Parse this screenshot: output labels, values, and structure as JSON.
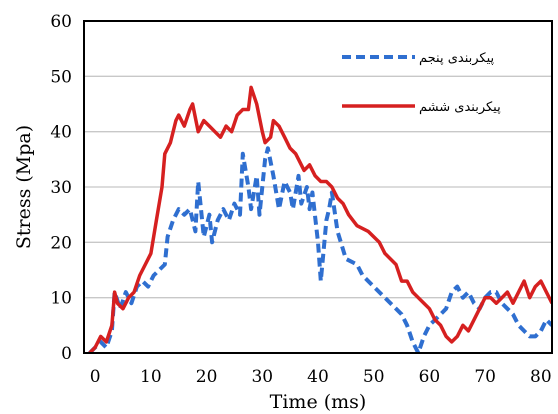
{
  "chart_data": {
    "type": "line",
    "xlabel": "Time (ms)",
    "ylabel": "Stress (Mpa)",
    "xlim": [
      -2,
      82
    ],
    "ylim": [
      0,
      60
    ],
    "xticks": [
      0,
      10,
      20,
      30,
      40,
      50,
      60,
      70,
      80
    ],
    "yticks": [
      0,
      10,
      20,
      30,
      40,
      50,
      60
    ],
    "grid": "horizontal",
    "legend_position": "top-right",
    "series": [
      {
        "name": "پیکربندی پنجم",
        "color": "#2f6fd0",
        "style": "dashed",
        "points": [
          [
            -1,
            0
          ],
          [
            0,
            1
          ],
          [
            1,
            2
          ],
          [
            2,
            1
          ],
          [
            3,
            4
          ],
          [
            3.5,
            11
          ],
          [
            4.5,
            8
          ],
          [
            5.5,
            11
          ],
          [
            6.5,
            9
          ],
          [
            7.5,
            12
          ],
          [
            8.5,
            13
          ],
          [
            9.5,
            12
          ],
          [
            10.5,
            14
          ],
          [
            11.5,
            15
          ],
          [
            12.5,
            16
          ],
          [
            13,
            21
          ],
          [
            14,
            24
          ],
          [
            15,
            26
          ],
          [
            16,
            25
          ],
          [
            17,
            26
          ],
          [
            18,
            22
          ],
          [
            18.5,
            31
          ],
          [
            19.5,
            21
          ],
          [
            20.5,
            25
          ],
          [
            21,
            20
          ],
          [
            22,
            24
          ],
          [
            23,
            26
          ],
          [
            24,
            24
          ],
          [
            25,
            27
          ],
          [
            26,
            25
          ],
          [
            26.5,
            36
          ],
          [
            27.5,
            30
          ],
          [
            28,
            26
          ],
          [
            29,
            32
          ],
          [
            29.5,
            25
          ],
          [
            30.5,
            35
          ],
          [
            31,
            37
          ],
          [
            32,
            32
          ],
          [
            33,
            26
          ],
          [
            34,
            31
          ],
          [
            35,
            29
          ],
          [
            35.5,
            26
          ],
          [
            36.5,
            32
          ],
          [
            37,
            27
          ],
          [
            38,
            30
          ],
          [
            38.5,
            26
          ],
          [
            39,
            29
          ],
          [
            40,
            20
          ],
          [
            40.5,
            13
          ],
          [
            41.5,
            24
          ],
          [
            42,
            26
          ],
          [
            42.5,
            29
          ],
          [
            43.5,
            22
          ],
          [
            45,
            17
          ],
          [
            47,
            16
          ],
          [
            48,
            14
          ],
          [
            50,
            12
          ],
          [
            52,
            10
          ],
          [
            54,
            8
          ],
          [
            55,
            7
          ],
          [
            56,
            5
          ],
          [
            57,
            2
          ],
          [
            58,
            0
          ],
          [
            59,
            3
          ],
          [
            60,
            5
          ],
          [
            61,
            6
          ],
          [
            62,
            7
          ],
          [
            63,
            8
          ],
          [
            64,
            11
          ],
          [
            65,
            12
          ],
          [
            66,
            10
          ],
          [
            67,
            11
          ],
          [
            68,
            9
          ],
          [
            69,
            8
          ],
          [
            70,
            10
          ],
          [
            71,
            11
          ],
          [
            72,
            11
          ],
          [
            73,
            9
          ],
          [
            74,
            8
          ],
          [
            75,
            7
          ],
          [
            76,
            5
          ],
          [
            77,
            4
          ],
          [
            78,
            3
          ],
          [
            79,
            3
          ],
          [
            80,
            4
          ],
          [
            81,
            6
          ],
          [
            82,
            5
          ]
        ]
      },
      {
        "name": "پیکربندی ششم",
        "color": "#d62020",
        "style": "solid",
        "points": [
          [
            -1,
            0
          ],
          [
            0,
            1
          ],
          [
            1,
            3
          ],
          [
            2,
            2
          ],
          [
            3,
            5
          ],
          [
            3.5,
            11
          ],
          [
            4,
            9
          ],
          [
            5,
            8
          ],
          [
            6,
            10
          ],
          [
            7,
            11
          ],
          [
            8,
            14
          ],
          [
            9,
            16
          ],
          [
            10,
            18
          ],
          [
            11,
            24
          ],
          [
            12,
            30
          ],
          [
            12.5,
            36
          ],
          [
            13.5,
            38
          ],
          [
            14.5,
            42
          ],
          [
            15,
            43
          ],
          [
            16,
            41
          ],
          [
            17,
            44
          ],
          [
            17.5,
            45
          ],
          [
            18.5,
            40
          ],
          [
            19.5,
            42
          ],
          [
            20.5,
            41
          ],
          [
            21.5,
            40
          ],
          [
            22.5,
            39
          ],
          [
            23.5,
            41
          ],
          [
            24.5,
            40
          ],
          [
            25.5,
            43
          ],
          [
            26.5,
            44
          ],
          [
            27.5,
            44
          ],
          [
            28,
            48
          ],
          [
            29,
            45
          ],
          [
            30,
            40
          ],
          [
            30.5,
            38
          ],
          [
            31.5,
            39
          ],
          [
            32,
            42
          ],
          [
            33,
            41
          ],
          [
            34,
            39
          ],
          [
            35,
            37
          ],
          [
            36,
            36
          ],
          [
            36.5,
            35
          ],
          [
            37.5,
            33
          ],
          [
            38.5,
            34
          ],
          [
            39.5,
            32
          ],
          [
            40.5,
            31
          ],
          [
            41.5,
            31
          ],
          [
            42.5,
            30
          ],
          [
            43.5,
            28
          ],
          [
            44.5,
            27
          ],
          [
            45.5,
            25
          ],
          [
            47,
            23
          ],
          [
            49,
            22
          ],
          [
            51,
            20
          ],
          [
            52,
            18
          ],
          [
            54,
            16
          ],
          [
            55,
            13
          ],
          [
            56,
            13
          ],
          [
            57,
            11
          ],
          [
            58,
            10
          ],
          [
            59,
            9
          ],
          [
            60,
            8
          ],
          [
            61,
            6
          ],
          [
            62,
            5
          ],
          [
            63,
            3
          ],
          [
            64,
            2
          ],
          [
            65,
            3
          ],
          [
            66,
            5
          ],
          [
            67,
            4
          ],
          [
            68,
            6
          ],
          [
            69,
            8
          ],
          [
            70,
            10
          ],
          [
            71,
            10
          ],
          [
            72,
            9
          ],
          [
            73,
            10
          ],
          [
            74,
            11
          ],
          [
            75,
            9
          ],
          [
            76,
            11
          ],
          [
            77,
            13
          ],
          [
            78,
            10
          ],
          [
            79,
            12
          ],
          [
            80,
            13
          ],
          [
            81,
            11
          ],
          [
            82,
            9
          ]
        ]
      }
    ]
  }
}
